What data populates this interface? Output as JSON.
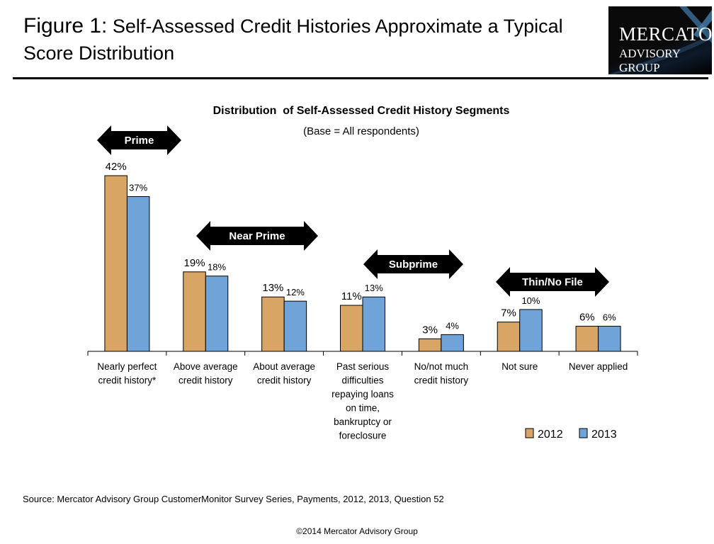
{
  "header": {
    "figure_label": "Figure 1:",
    "title": "Self-Assessed Credit Histories Approximate a Typical Score Distribution",
    "logo_text": [
      "Mercator",
      "Advisory Group"
    ]
  },
  "chart_data": {
    "type": "bar",
    "title": "Distribution  of Self-Assessed Credit History Segments",
    "subtitle": "(Base = All respondents)",
    "categories": [
      "Nearly perfect\ncredit history*",
      "Above average\ncredit history",
      "About average\ncredit history",
      "Past serious\ndifficulties\nrepaying loans\non time,\nbankruptcy or\nforeclosure",
      "No/not much\ncredit history",
      "Not sure",
      "Never applied"
    ],
    "series": [
      {
        "name": "2012",
        "values": [
          42,
          19,
          13,
          11,
          3,
          7,
          6
        ],
        "labels": [
          "42%",
          "19%",
          "13%",
          "11%",
          "3%",
          "7%",
          "6%"
        ],
        "color": "#D9A565"
      },
      {
        "name": "2013",
        "values": [
          37,
          18,
          12,
          13,
          4,
          10,
          6
        ],
        "labels": [
          "37%",
          "18%",
          "12%",
          "13%",
          "4%",
          "10%",
          "6%"
        ],
        "color": "#70A4D8"
      }
    ],
    "ylim": [
      0,
      42
    ],
    "grid": false,
    "legend": "bottom-right",
    "segments": [
      {
        "label": "Prime"
      },
      {
        "label": "Near Prime"
      },
      {
        "label": "Subprime"
      },
      {
        "label": "Thin/No File"
      }
    ]
  },
  "footer": {
    "source": "Source: Mercator Advisory Group CustomerMonitor Survey Series, Payments, 2012, 2013,  Question 52",
    "copyright": "©2014 Mercator Advisory Group"
  }
}
